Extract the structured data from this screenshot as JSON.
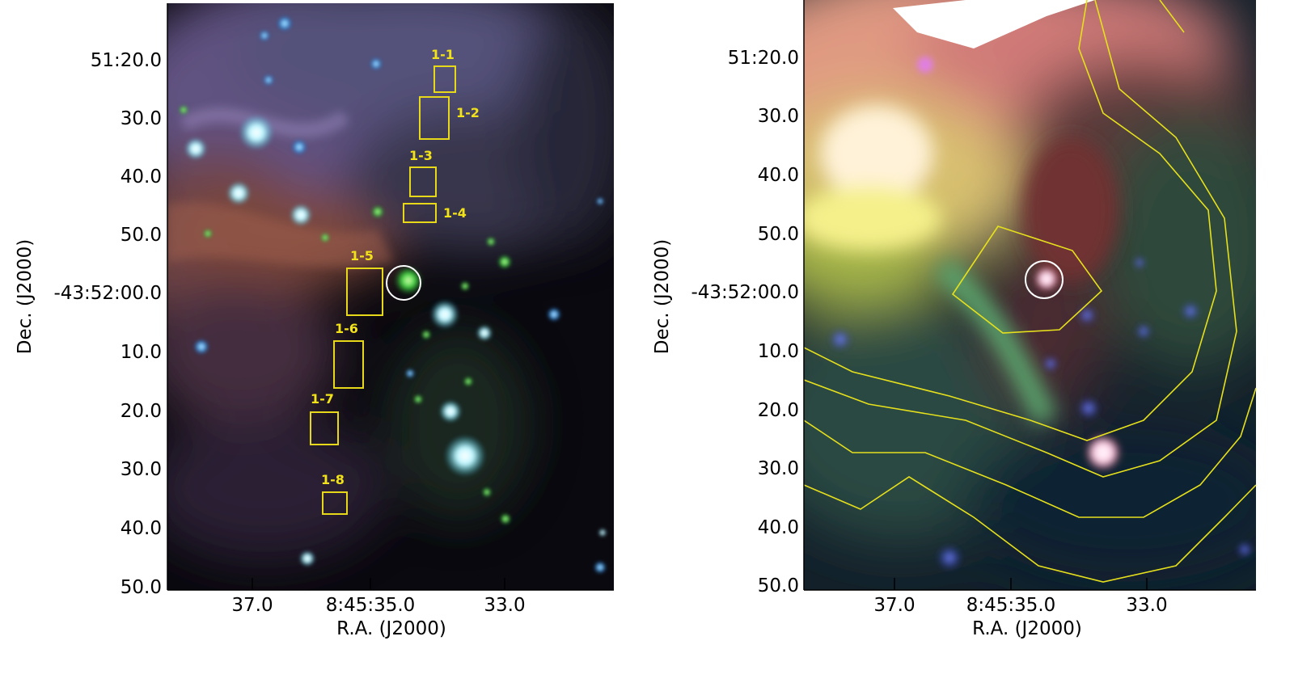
{
  "left_panel": {
    "y_ticks": [
      "51:20.0",
      "30.0",
      "40.0",
      "50.0",
      "-43:52:00.0",
      "10.0",
      "20.0",
      "30.0",
      "40.0",
      "50.0"
    ],
    "x_ticks": [
      "37.0",
      "8:45:35.0",
      "33.0"
    ],
    "x_label": "R.A. (J2000)",
    "y_label": "Dec. (J2000)",
    "regions": [
      {
        "label": "1-1"
      },
      {
        "label": "1-2"
      },
      {
        "label": "1-3"
      },
      {
        "label": "1-4"
      },
      {
        "label": "1-5"
      },
      {
        "label": "1-6"
      },
      {
        "label": "1-7"
      },
      {
        "label": "1-8"
      }
    ]
  },
  "right_panel": {
    "y_ticks": [
      "51:20.0",
      "30.0",
      "40.0",
      "50.0",
      "-43:52:00.0",
      "10.0",
      "20.0",
      "30.0",
      "40.0",
      "50.0"
    ],
    "x_ticks": [
      "37.0",
      "8:45:35.0",
      "33.0"
    ],
    "x_label": "R.A. (J2000)",
    "y_label": "Dec. (J2000)"
  },
  "colors": {
    "region_box": "#e8d81a",
    "contour": "#e6e01c",
    "marker_circle": "#ffffff",
    "axis": "#000000"
  }
}
